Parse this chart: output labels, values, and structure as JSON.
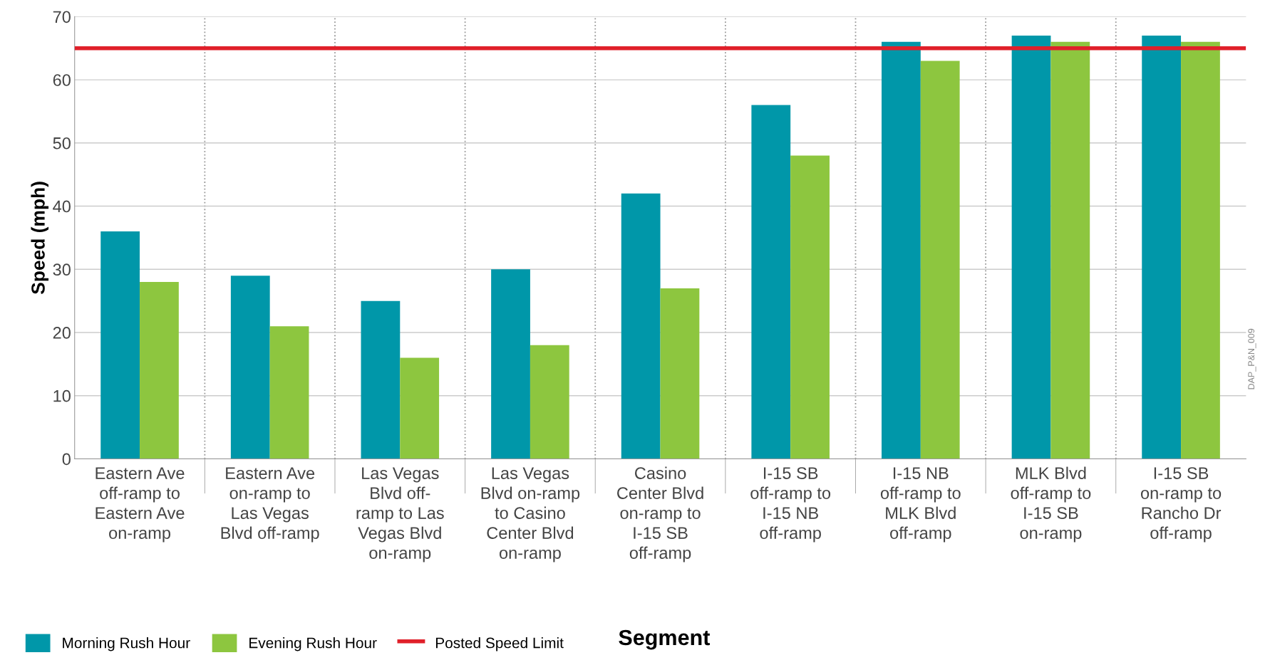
{
  "chart_data": {
    "type": "bar",
    "xlabel": "Segment",
    "ylabel": "Speed (mph)",
    "categories": [
      "Eastern Ave\noff-ramp to\nEastern Ave\non-ramp",
      "Eastern Ave\non-ramp to\nLas Vegas\nBlvd off-ramp",
      "Las Vegas\nBlvd off-\nramp to Las\nVegas Blvd\non-ramp",
      "Las Vegas\nBlvd on-ramp\nto Casino\nCenter Blvd\non-ramp",
      "Casino\nCenter Blvd\non-ramp to\nI-15 SB\noff-ramp",
      "I-15 SB\noff-ramp to\nI-15 NB\noff-ramp",
      "I-15 NB\noff-ramp to\nMLK Blvd\noff-ramp",
      "MLK Blvd\noff-ramp to\nI-15 SB\non-ramp",
      "I-15 SB\non-ramp to\nRancho Dr\noff-ramp"
    ],
    "series": [
      {
        "name": "Morning Rush Hour",
        "color": "#0097a9",
        "values": [
          36,
          29,
          25,
          30,
          42,
          56,
          66,
          67,
          67
        ]
      },
      {
        "name": "Evening Rush Hour",
        "color": "#8dc63f",
        "values": [
          28,
          21,
          16,
          18,
          27,
          48,
          63,
          66,
          66
        ]
      }
    ],
    "ref_lines": [
      {
        "axis": "y",
        "value": 65,
        "label": "Posted Speed Limit",
        "color": "#e0202a",
        "line_style": "solid"
      }
    ],
    "ylim": [
      0,
      70
    ],
    "yticks": [
      0,
      10,
      20,
      30,
      40,
      50,
      60,
      70
    ],
    "grid": true,
    "legend": "bottom left",
    "annotations": [
      "DAP_P&N_009"
    ]
  }
}
